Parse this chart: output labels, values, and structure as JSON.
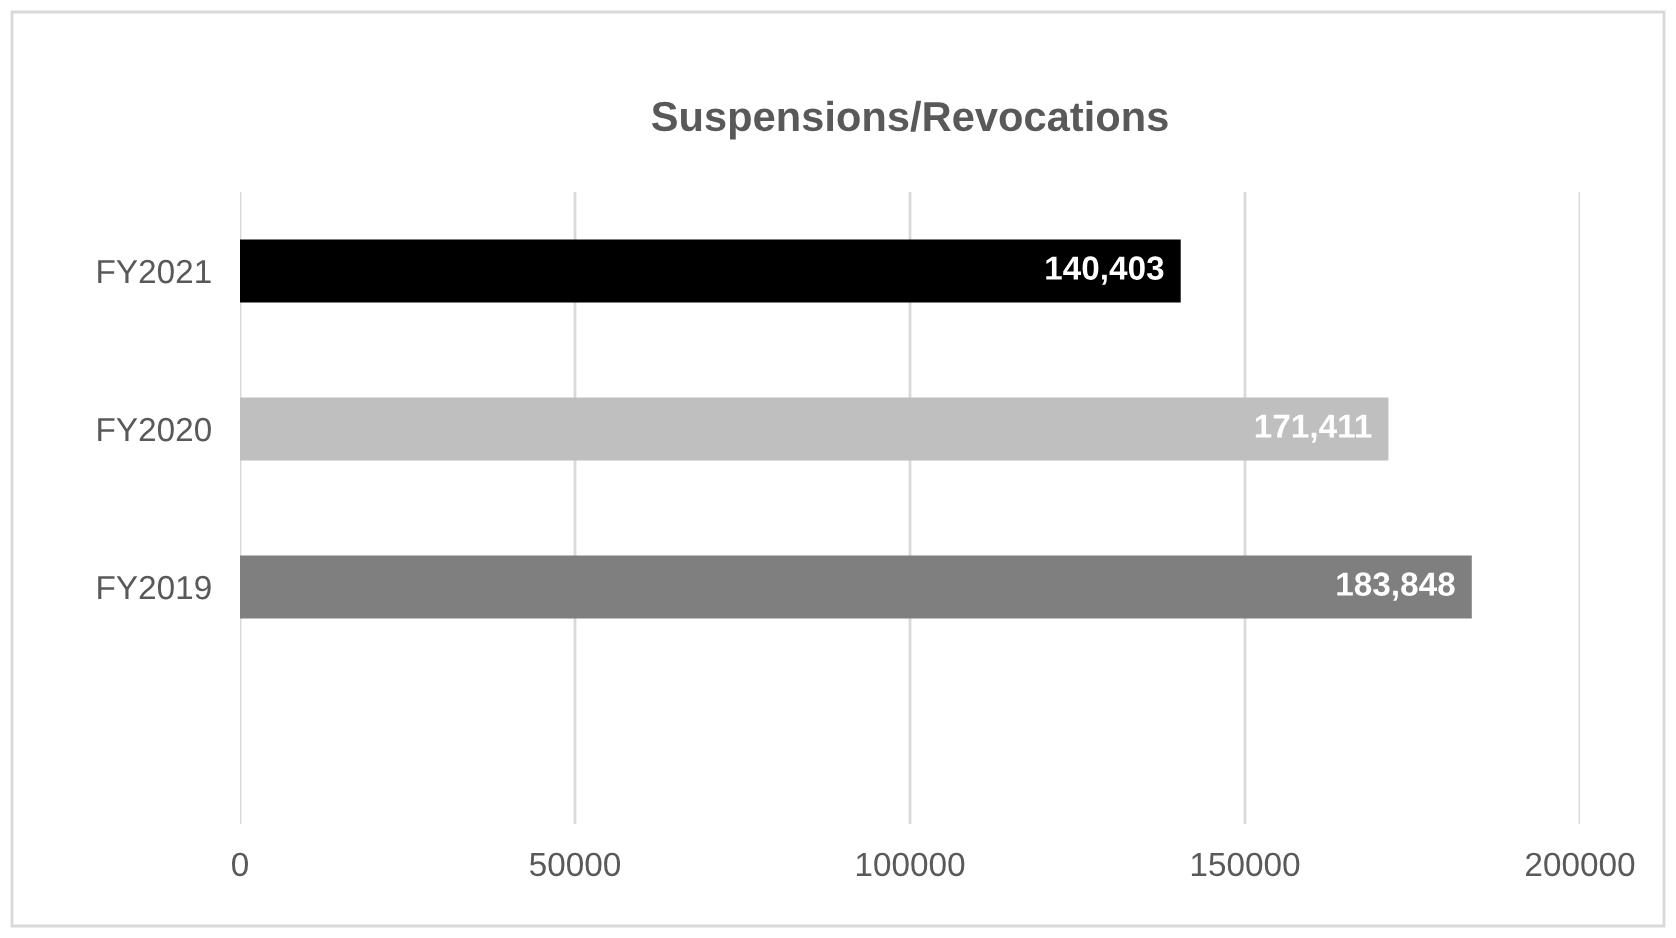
{
  "chart_data": {
    "type": "bar",
    "orientation": "horizontal",
    "title": "Suspensions/Revocations",
    "categories": [
      "FY2021",
      "FY2020",
      "FY2019",
      null
    ],
    "values": [
      140403,
      171411,
      183848,
      null
    ],
    "colors": [
      "#000000",
      "#bfbfbf",
      "#7f7f7f",
      "#7f7f7f"
    ],
    "value_labels": [
      "140,403",
      "171,411",
      "183,848",
      null
    ],
    "xlim": [
      0,
      200000
    ],
    "xticks": [
      0,
      50000,
      100000,
      150000,
      200000
    ],
    "grid": "x",
    "legend": false
  }
}
